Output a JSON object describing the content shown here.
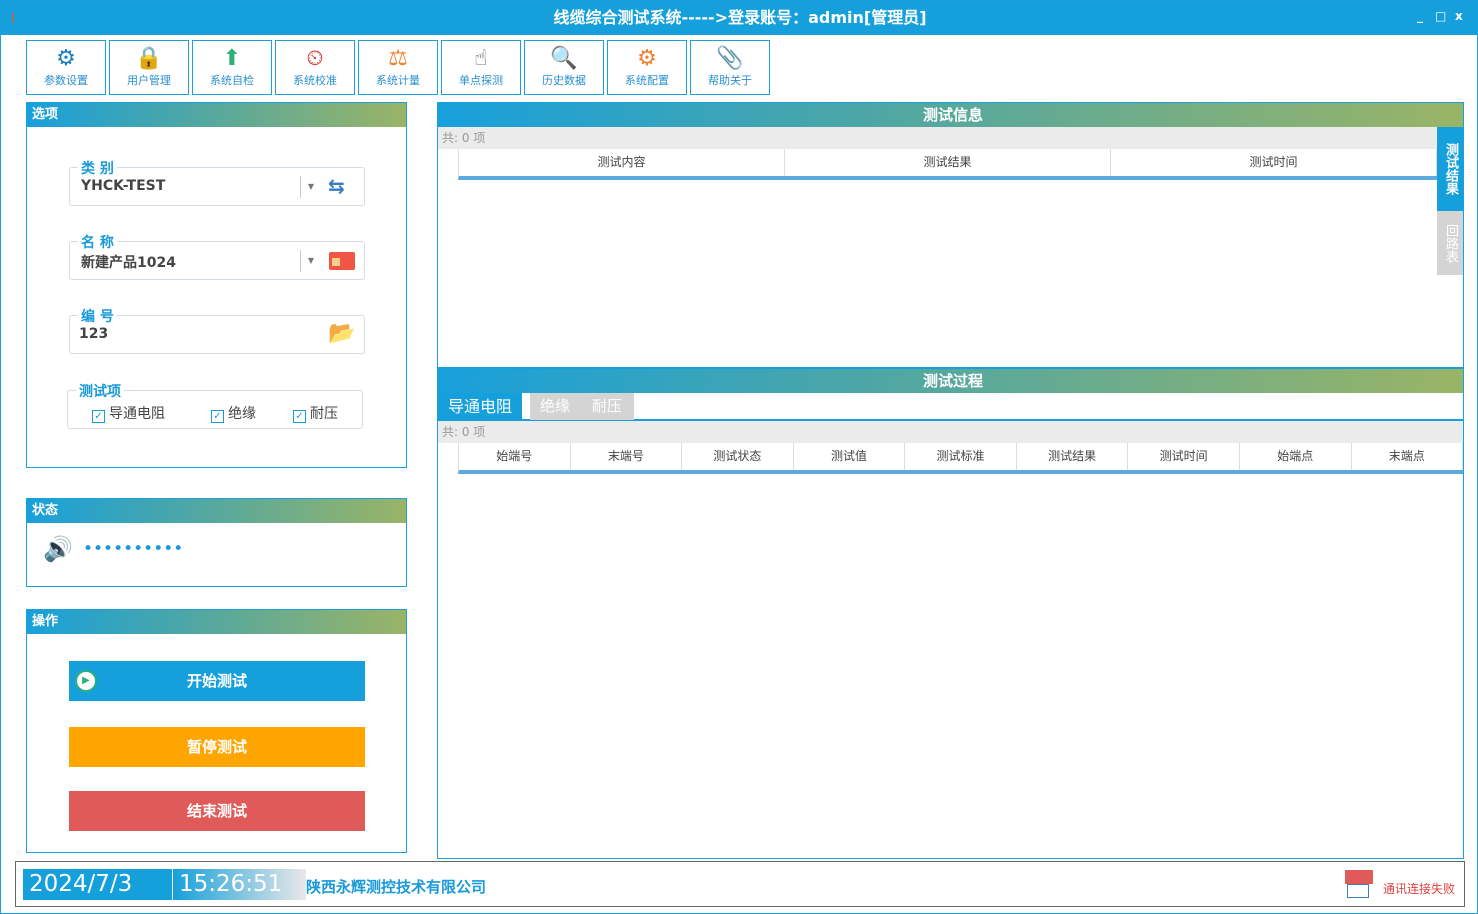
{
  "window": {
    "title": "线缆综合测试系统----->登录账号：admin[管理员]",
    "minimize": "_",
    "maximize": "□",
    "close": "x"
  },
  "toolbar": [
    {
      "label": "参数设置",
      "icon": "gear-icon",
      "glyph": "⚙",
      "color": "#1a7fc8"
    },
    {
      "label": "用户管理",
      "icon": "lock-key-icon",
      "glyph": "🔒",
      "color": "#e8b060"
    },
    {
      "label": "系统自检",
      "icon": "chart-up-icon",
      "glyph": "⬆",
      "color": "#2bb07a"
    },
    {
      "label": "系统校准",
      "icon": "scale-icon",
      "glyph": "⏲",
      "color": "#d03030"
    },
    {
      "label": "系统计量",
      "icon": "balance-icon",
      "glyph": "⚖",
      "color": "#f08030"
    },
    {
      "label": "单点探测",
      "icon": "touch-icon",
      "glyph": "☝",
      "color": "#555"
    },
    {
      "label": "历史数据",
      "icon": "docs-search-icon",
      "glyph": "🔍",
      "color": "#c8a060"
    },
    {
      "label": "系统配置",
      "icon": "config-icon",
      "glyph": "⚙",
      "color": "#f08030"
    },
    {
      "label": "帮助关于",
      "icon": "paperclip-icon",
      "glyph": "📎",
      "color": "#555"
    }
  ],
  "options": {
    "title": "选项",
    "category": {
      "label": "类 别",
      "value": "YHCK-TEST"
    },
    "name": {
      "label": "名 称",
      "value": "新建产品1024"
    },
    "number": {
      "label": "编 号",
      "value": "123"
    },
    "test_items": {
      "label": "测试项",
      "items": [
        {
          "label": "导通电阻",
          "checked": true
        },
        {
          "label": "绝缘",
          "checked": true
        },
        {
          "label": "耐压",
          "checked": true
        }
      ]
    }
  },
  "status": {
    "title": "状态",
    "text": "••••••••••"
  },
  "operations": {
    "title": "操作",
    "start": "开始测试",
    "pause": "暂停测试",
    "stop": "结束测试",
    "colors": {
      "start": "#16a0db",
      "pause": "#ffa500",
      "stop": "#e05a5a"
    }
  },
  "test_info": {
    "title": "测试信息",
    "count": "共: 0 项",
    "columns": [
      "测试内容",
      "测试结果",
      "测试时间"
    ],
    "side_tabs": [
      "测试结果",
      "回路表"
    ]
  },
  "test_process": {
    "title": "测试过程",
    "tabs": [
      "导通电阻",
      "绝缘",
      "耐压"
    ],
    "count": "共: 0 项",
    "columns": [
      "始端号",
      "末端号",
      "测试状态",
      "测试值",
      "测试标准",
      "测试结果",
      "测试时间",
      "始端点",
      "末端点"
    ]
  },
  "statusbar": {
    "date": "2024/7/3",
    "time": "15:26:51",
    "company": "陕西永辉测控技术有限公司",
    "connection": "通讯连接失败"
  }
}
